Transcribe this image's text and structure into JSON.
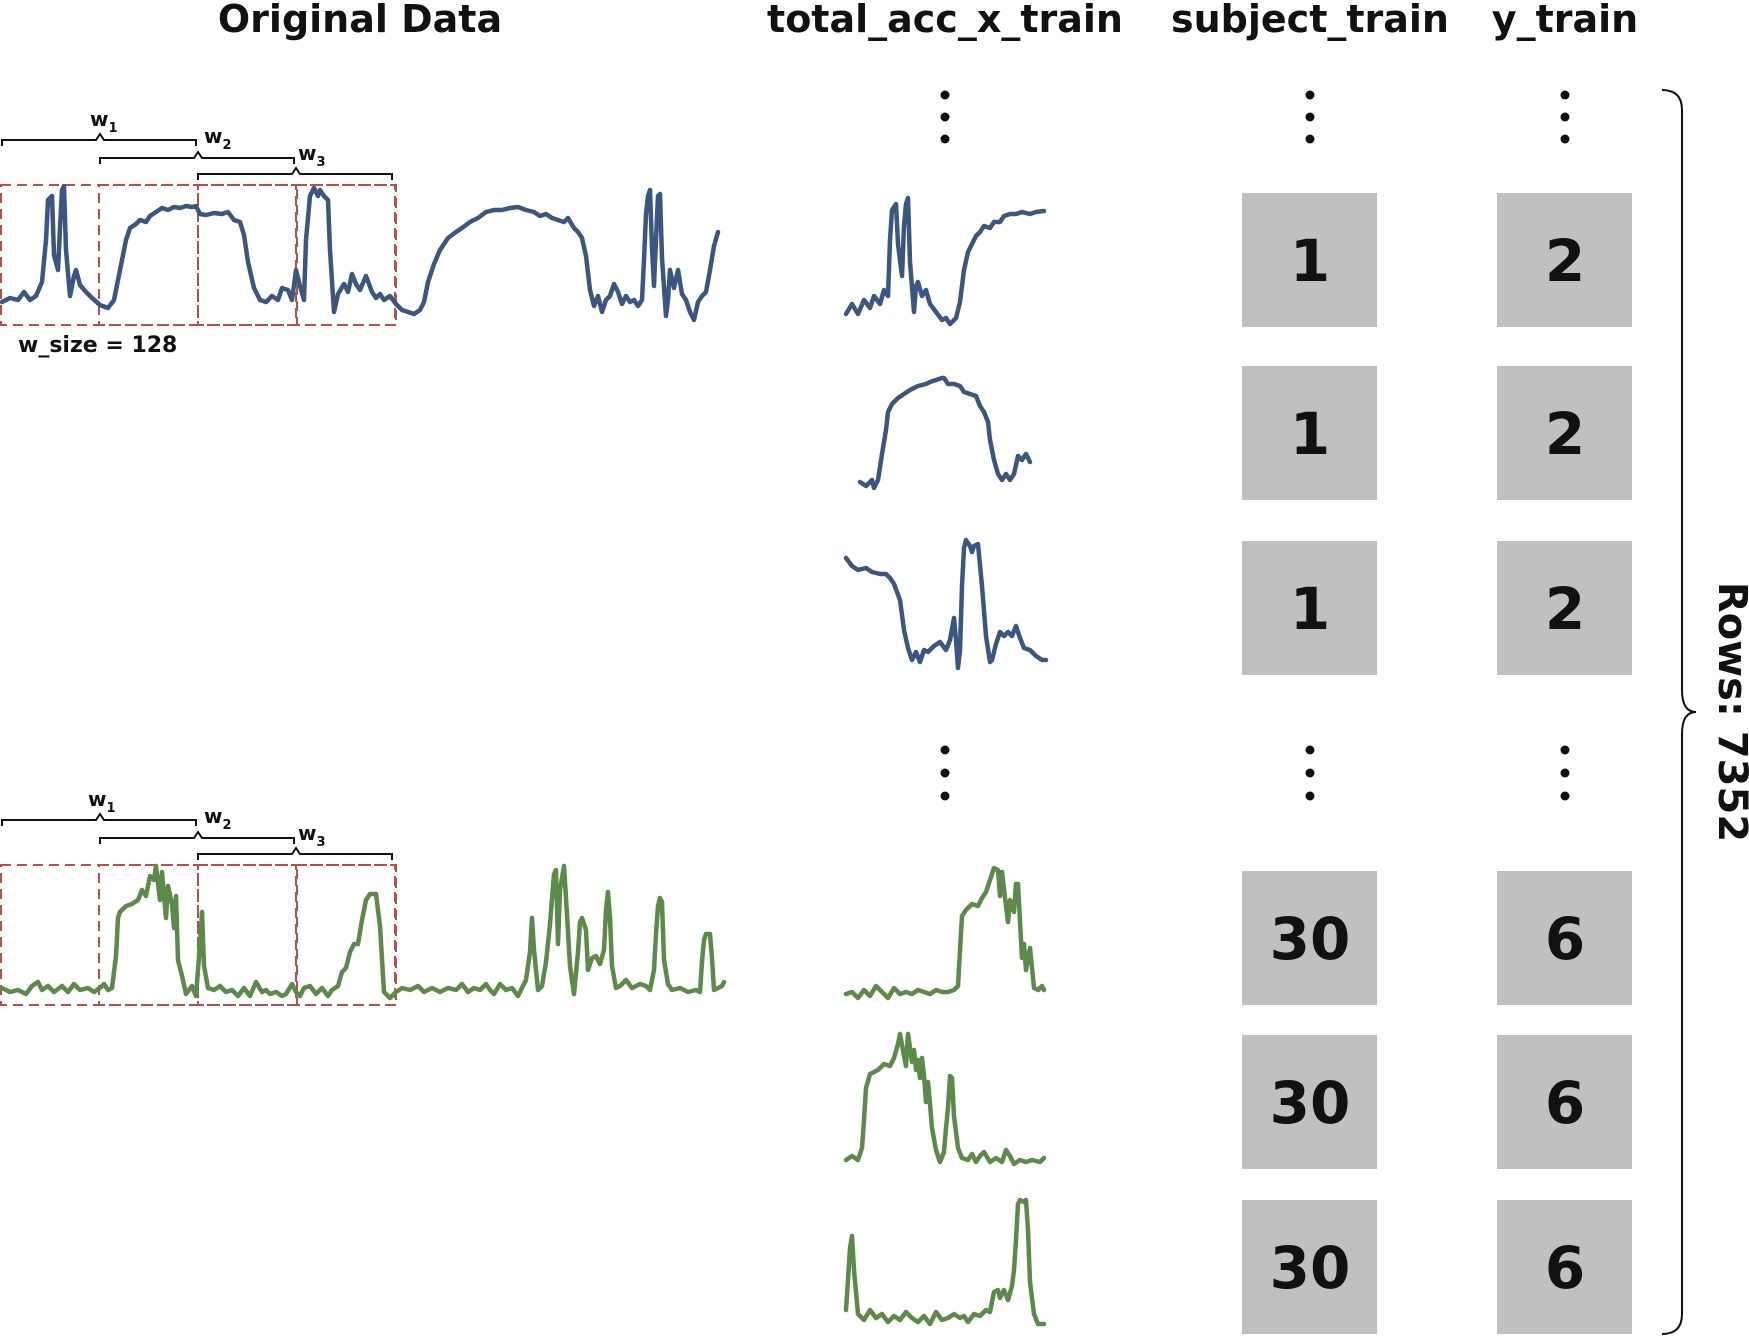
{
  "headers": {
    "original_data": "Original Data",
    "total_acc": "total_acc_x_train",
    "subject": "subject_train",
    "y": "y_train"
  },
  "window_labels": {
    "w": "w",
    "sub1": "1",
    "sub2": "2",
    "sub3": "3"
  },
  "window_size_label": "w_size = 128",
  "rows_label": "Rows: 7352",
  "rows": [
    {
      "subject": "1",
      "y": "2",
      "signal_color": "#3b5680"
    },
    {
      "subject": "1",
      "y": "2",
      "signal_color": "#3b5680"
    },
    {
      "subject": "1",
      "y": "2",
      "signal_color": "#3b5680"
    },
    {
      "subject": "30",
      "y": "6",
      "signal_color": "#5b8a4a"
    },
    {
      "subject": "30",
      "y": "6",
      "signal_color": "#5b8a4a"
    },
    {
      "subject": "30",
      "y": "6",
      "signal_color": "#5b8a4a"
    }
  ],
  "colors": {
    "blue_signal": "#3b5680",
    "green_signal": "#5b8a4a",
    "window_box": "#b5504a",
    "cell_fill": "#c0c0c0"
  }
}
